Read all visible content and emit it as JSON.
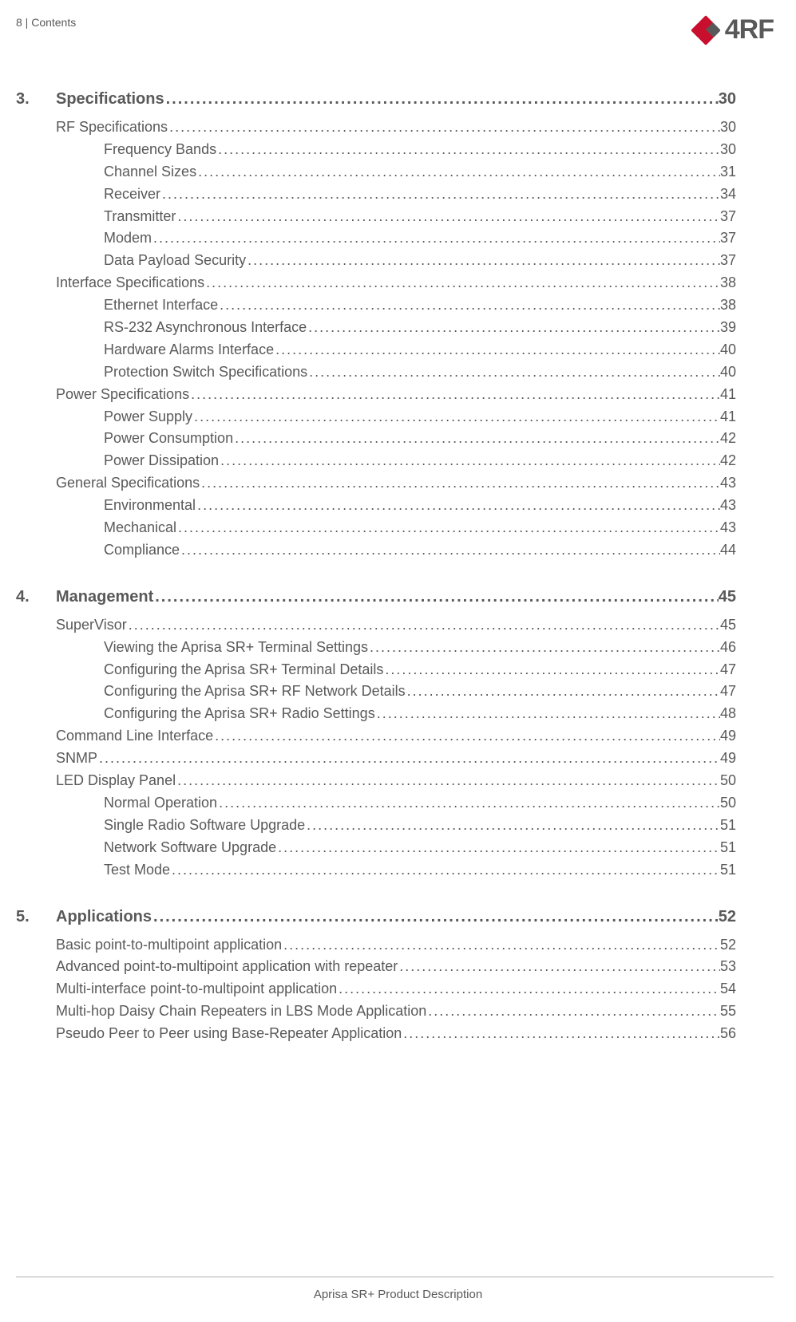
{
  "header": {
    "left": "8  |  Contents",
    "logo_text": "4RF"
  },
  "footer": "Aprisa SR+ Product Description",
  "colors": {
    "text": "#595959",
    "page_bg": "#ffffff",
    "logo_red": "#c8102e",
    "logo_gray": "#595959",
    "rule": "#b0b0b0"
  },
  "typography": {
    "body_family": "Verdana",
    "body_size_pt": 13,
    "chapter_size_pt": 15,
    "chapter_weight": 700,
    "logo_size_pt": 26
  },
  "toc": [
    {
      "number": "3.",
      "title": "Specifications",
      "page": "30",
      "items": [
        {
          "level": 1,
          "title": "RF Specifications",
          "page": "30"
        },
        {
          "level": 2,
          "title": "Frequency Bands",
          "page": "30"
        },
        {
          "level": 2,
          "title": "Channel Sizes",
          "page": "31"
        },
        {
          "level": 2,
          "title": "Receiver",
          "page": "34"
        },
        {
          "level": 2,
          "title": "Transmitter",
          "page": "37"
        },
        {
          "level": 2,
          "title": "Modem",
          "page": "37"
        },
        {
          "level": 2,
          "title": "Data Payload Security",
          "page": "37"
        },
        {
          "level": 1,
          "title": "Interface Specifications",
          "page": "38"
        },
        {
          "level": 2,
          "title": "Ethernet Interface",
          "page": "38"
        },
        {
          "level": 2,
          "title": "RS-232 Asynchronous Interface",
          "page": "39"
        },
        {
          "level": 2,
          "title": "Hardware Alarms Interface",
          "page": "40"
        },
        {
          "level": 2,
          "title": "Protection Switch Specifications",
          "page": "40"
        },
        {
          "level": 1,
          "title": "Power Specifications",
          "page": "41"
        },
        {
          "level": 2,
          "title": "Power Supply",
          "page": "41"
        },
        {
          "level": 2,
          "title": "Power Consumption",
          "page": "42"
        },
        {
          "level": 2,
          "title": "Power Dissipation",
          "page": "42"
        },
        {
          "level": 1,
          "title": "General Specifications",
          "page": "43"
        },
        {
          "level": 2,
          "title": "Environmental",
          "page": "43"
        },
        {
          "level": 2,
          "title": "Mechanical",
          "page": "43"
        },
        {
          "level": 2,
          "title": "Compliance",
          "page": "44"
        }
      ]
    },
    {
      "number": "4.",
      "title": "Management",
      "page": "45",
      "items": [
        {
          "level": 1,
          "title": "SuperVisor",
          "page": "45"
        },
        {
          "level": 2,
          "title": "Viewing the Aprisa SR+ Terminal Settings",
          "page": "46"
        },
        {
          "level": 2,
          "title": "Configuring the Aprisa SR+ Terminal Details",
          "page": "47"
        },
        {
          "level": 2,
          "title": "Configuring the Aprisa SR+ RF Network Details",
          "page": "47"
        },
        {
          "level": 2,
          "title": "Configuring the Aprisa SR+ Radio Settings",
          "page": "48"
        },
        {
          "level": 1,
          "title": "Command Line Interface",
          "page": "49"
        },
        {
          "level": 1,
          "title": "SNMP",
          "page": "49"
        },
        {
          "level": 1,
          "title": "LED Display Panel",
          "page": "50"
        },
        {
          "level": 2,
          "title": "Normal Operation",
          "page": "50"
        },
        {
          "level": 2,
          "title": "Single Radio Software Upgrade",
          "page": "51"
        },
        {
          "level": 2,
          "title": "Network Software Upgrade",
          "page": "51"
        },
        {
          "level": 2,
          "title": "Test Mode",
          "page": "51"
        }
      ]
    },
    {
      "number": "5.",
      "title": "Applications",
      "page": "52",
      "items": [
        {
          "level": 1,
          "title": "Basic point-to-multipoint application",
          "page": "52"
        },
        {
          "level": 1,
          "title": "Advanced point-to-multipoint application with repeater",
          "page": "53"
        },
        {
          "level": 1,
          "title": "Multi-interface point-to-multipoint application",
          "page": "54"
        },
        {
          "level": 1,
          "title": "Multi-hop Daisy Chain Repeaters in LBS Mode Application",
          "page": "55"
        },
        {
          "level": 1,
          "title": "Pseudo Peer to Peer using Base-Repeater Application",
          "page": "56"
        }
      ]
    }
  ]
}
